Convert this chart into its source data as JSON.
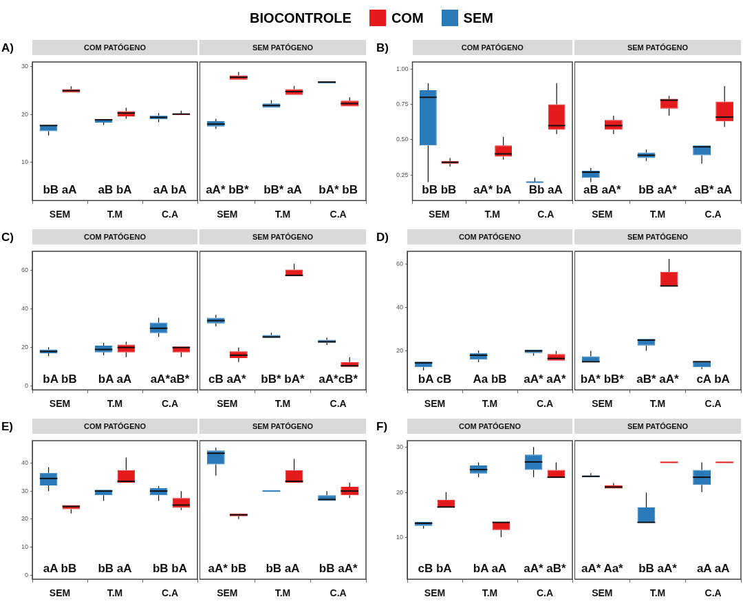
{
  "chart_data": [
    {
      "type": "box",
      "title": "COM PATÓGENO",
      "subtitle": "A)",
      "legend": "top",
      "legend_title": "BIOCONTROLE",
      "categories": [
        "SEM",
        "T.M",
        "C.A"
      ],
      "ylim": [
        2,
        31
      ],
      "yticks": [
        10,
        20,
        30
      ],
      "grid": false,
      "series": [
        {
          "name": "SEM",
          "color": "#2a7ab9",
          "boxes": [
            {
              "low": 15.6,
              "q1": 16.5,
              "median": 17.7,
              "q3": 17.8,
              "high": 17.8
            },
            {
              "low": 17.8,
              "q1": 18.3,
              "median": 18.9,
              "q3": 19.0,
              "high": 19.0
            },
            {
              "low": 18.4,
              "q1": 19.0,
              "median": 19.4,
              "q3": 19.8,
              "high": 20.3
            }
          ]
        },
        {
          "name": "COM",
          "color": "#e41a1c",
          "boxes": [
            {
              "low": 24.6,
              "q1": 24.6,
              "median": 25.0,
              "q3": 25.3,
              "high": 25.9
            },
            {
              "low": 19.1,
              "q1": 19.6,
              "median": 20.3,
              "q3": 20.7,
              "high": 21.4
            },
            {
              "low": 19.9,
              "q1": 19.9,
              "median": 20.1,
              "q3": 20.2,
              "high": 20.8
            }
          ]
        }
      ],
      "annotations": [
        "bB aA",
        "aB bA",
        "aA bA"
      ]
    },
    {
      "type": "box",
      "title": "SEM PATÓGENO",
      "categories": [
        "SEM",
        "T.M",
        "C.A"
      ],
      "ylim": [
        2,
        31
      ],
      "grid": false,
      "tick_labels": "x",
      "series": [
        {
          "color": "#2a7ab9",
          "boxes": [
            {
              "low": 17.0,
              "q1": 17.5,
              "median": 18.0,
              "q3": 18.6,
              "high": 19.1
            },
            {
              "low": 21.4,
              "q1": 21.4,
              "median": 21.9,
              "q3": 22.3,
              "high": 23.0
            },
            {
              "low": 26.5,
              "q1": 26.5,
              "median": 26.8,
              "q3": 26.9,
              "high": 26.9
            }
          ]
        },
        {
          "color": "#e41a1c",
          "boxes": [
            {
              "low": 27.3,
              "q1": 27.3,
              "median": 27.8,
              "q3": 28.2,
              "high": 28.9
            },
            {
              "low": 24.1,
              "q1": 24.1,
              "median": 24.8,
              "q3": 25.3,
              "high": 26.0
            },
            {
              "low": 21.7,
              "q1": 21.7,
              "median": 22.3,
              "q3": 22.9,
              "high": 23.6
            }
          ]
        }
      ],
      "annotations": [
        "aA* bB*",
        "bB* aA",
        "bA* bB"
      ]
    },
    {
      "type": "box",
      "title": "COM PATÓGENO",
      "subtitle": "B)",
      "categories": [
        "SEM",
        "T.M",
        "C.A"
      ],
      "ylim": [
        0.07,
        1.05
      ],
      "yticks": [
        {
          "value": 0.25,
          "label": "0.25"
        },
        {
          "value": 0.5,
          "label": "0.50"
        },
        {
          "value": 0.75,
          "label": "0.75"
        },
        {
          "value": 1,
          "label": "1.00"
        }
      ],
      "grid": false,
      "series": [
        {
          "color": "#2a7ab9",
          "boxes": [
            {
              "low": 0.2,
              "q1": 0.46,
              "median": 0.8,
              "q3": 0.85,
              "high": 0.9
            },
            null,
            {
              "low": 0.2,
              "q1": 0.2,
              "median": 0.2,
              "q3": 0.2,
              "high": 0.23
            }
          ]
        },
        {
          "color": "#e41a1c",
          "boxes": [
            {
              "low": 0.31,
              "q1": 0.33,
              "median": 0.34,
              "q3": 0.35,
              "high": 0.37
            },
            {
              "low": 0.36,
              "q1": 0.38,
              "median": 0.4,
              "q3": 0.46,
              "high": 0.52
            },
            {
              "low": 0.54,
              "q1": 0.57,
              "median": 0.6,
              "q3": 0.75,
              "high": 0.9
            }
          ]
        }
      ],
      "annotations": [
        "bB bB",
        "aA* bA",
        "Bb aA"
      ]
    },
    {
      "type": "box",
      "title": "SEM PATÓGENO",
      "categories": [
        "SEM",
        "T.M",
        "C.A"
      ],
      "ylim": [
        0.07,
        1.05
      ],
      "grid": false,
      "tick_labels": "x",
      "series": [
        {
          "color": "#2a7ab9",
          "boxes": [
            {
              "low": 0.2,
              "q1": 0.23,
              "median": 0.27,
              "q3": 0.28,
              "high": 0.3
            },
            {
              "low": 0.35,
              "q1": 0.37,
              "median": 0.39,
              "q3": 0.41,
              "high": 0.43
            },
            {
              "low": 0.33,
              "q1": 0.39,
              "median": 0.45,
              "q3": 0.46,
              "high": 0.46
            }
          ]
        },
        {
          "color": "#e41a1c",
          "boxes": [
            {
              "low": 0.54,
              "q1": 0.57,
              "median": 0.6,
              "q3": 0.64,
              "high": 0.67
            },
            {
              "low": 0.67,
              "q1": 0.72,
              "median": 0.78,
              "q3": 0.79,
              "high": 0.81
            },
            {
              "low": 0.59,
              "q1": 0.63,
              "median": 0.66,
              "q3": 0.77,
              "high": 0.88
            }
          ]
        }
      ],
      "annotations": [
        "aB aA*",
        "bB aA*",
        "aB* aA"
      ]
    },
    {
      "type": "box",
      "title": "COM PATÓGENO",
      "subtitle": "C)",
      "categories": [
        "SEM",
        "T.M",
        "C.A"
      ],
      "ylim": [
        -2,
        70
      ],
      "yticks": [
        0,
        20,
        40,
        60
      ],
      "grid": false,
      "series": [
        {
          "color": "#2a7ab9",
          "boxes": [
            {
              "low": 15.5,
              "q1": 17,
              "median": 18,
              "q3": 19,
              "high": 20.2
            },
            {
              "low": 16,
              "q1": 17.5,
              "median": 19,
              "q3": 21,
              "high": 22.5
            },
            {
              "low": 25.5,
              "q1": 27.5,
              "median": 30,
              "q3": 33,
              "high": 35.5
            }
          ]
        },
        {
          "color": "#e41a1c",
          "boxes": [
            null,
            {
              "low": 15,
              "q1": 17.5,
              "median": 20,
              "q3": 21.5,
              "high": 23
            },
            {
              "low": 15,
              "q1": 17.5,
              "median": 20,
              "q3": 20.5,
              "high": 20.5
            }
          ]
        }
      ],
      "annotations": [
        "bA bB",
        "bA aA",
        "aA*aB*"
      ]
    },
    {
      "type": "box",
      "title": "SEM PATÓGENO",
      "categories": [
        "SEM",
        "T.M",
        "C.A"
      ],
      "ylim": [
        -2,
        70
      ],
      "grid": false,
      "tick_labels": "x",
      "series": [
        {
          "color": "#2a7ab9",
          "boxes": [
            {
              "low": 31,
              "q1": 32.5,
              "median": 34,
              "q3": 35.5,
              "high": 37
            },
            {
              "low": 25,
              "q1": 25,
              "median": 25.5,
              "q3": 26.5,
              "high": 27.7
            },
            {
              "low": 21.3,
              "q1": 22.5,
              "median": 23,
              "q3": 24,
              "high": 25.2
            }
          ]
        },
        {
          "color": "#e41a1c",
          "boxes": [
            {
              "low": 12.5,
              "q1": 14.5,
              "median": 16,
              "q3": 18,
              "high": 20
            },
            {
              "low": 57,
              "q1": 57,
              "median": 57.5,
              "q3": 60.5,
              "high": 63.5
            },
            {
              "low": 10,
              "q1": 10,
              "median": 10.5,
              "q3": 12.5,
              "high": 15
            }
          ]
        }
      ],
      "annotations": [
        "cB aA*",
        "bB* bA*",
        "aA*cB*"
      ]
    },
    {
      "type": "box",
      "title": "COM PATÓGENO",
      "subtitle": "D)",
      "categories": [
        "SEM",
        "T.M",
        "C.A"
      ],
      "ylim": [
        2,
        66
      ],
      "yticks": [
        20,
        40,
        60
      ],
      "grid": false,
      "series": [
        {
          "color": "#2a7ab9",
          "boxes": [
            {
              "low": 11,
              "q1": 12.5,
              "median": 14.5,
              "q3": 15,
              "high": 15
            },
            {
              "low": 14.8,
              "q1": 16,
              "median": 18,
              "q3": 19,
              "high": 20.2
            },
            {
              "low": 17.8,
              "q1": 19,
              "median": 20,
              "q3": 20.5,
              "high": 20.5
            }
          ]
        },
        {
          "color": "#e41a1c",
          "boxes": [
            null,
            null,
            {
              "low": 15.5,
              "q1": 15.5,
              "median": 16.5,
              "q3": 18.5,
              "high": 20
            }
          ]
        }
      ],
      "annotations": [
        "bA cB",
        "Aa bB",
        "aA* aA*"
      ]
    },
    {
      "type": "box",
      "title": "SEM PATÓGENO",
      "categories": [
        "SEM",
        "T.M",
        "C.A"
      ],
      "ylim": [
        2,
        66
      ],
      "grid": false,
      "tick_labels": "x",
      "series": [
        {
          "color": "#2a7ab9",
          "boxes": [
            {
              "low": 15,
              "q1": 15,
              "median": 15,
              "q3": 17.5,
              "high": 20
            },
            {
              "low": 20,
              "q1": 22.5,
              "median": 25,
              "q3": 25.5,
              "high": 25.5
            },
            {
              "low": 11.5,
              "q1": 12.5,
              "median": 15,
              "q3": 15,
              "high": 15
            }
          ]
        },
        {
          "color": "#e41a1c",
          "boxes": [
            null,
            {
              "low": 50,
              "q1": 50,
              "median": 50,
              "q3": 56.5,
              "high": 62.5
            },
            null
          ]
        }
      ],
      "annotations": [
        "bA* bB*",
        "aB* aA*",
        "cA bA"
      ]
    },
    {
      "type": "box",
      "title": "COM PATÓGENO",
      "subtitle": "E)",
      "categories": [
        "SEM",
        "T.M",
        "C.A"
      ],
      "ylim": [
        -1.5,
        48
      ],
      "yticks": [
        0,
        10,
        20,
        30,
        40
      ],
      "grid": false,
      "series": [
        {
          "color": "#2a7ab9",
          "boxes": [
            {
              "low": 30,
              "q1": 32,
              "median": 34.5,
              "q3": 36.5,
              "high": 38.5
            },
            {
              "low": 26.5,
              "q1": 28.5,
              "median": 30,
              "q3": 30.5,
              "high": 30.5
            },
            {
              "low": 26.5,
              "q1": 28.5,
              "median": 30,
              "q3": 31,
              "high": 31.8
            }
          ]
        },
        {
          "color": "#e41a1c",
          "boxes": [
            {
              "low": 22,
              "q1": 23.5,
              "median": 24.5,
              "q3": 25,
              "high": 25
            },
            {
              "low": 33,
              "q1": 33,
              "median": 33.5,
              "q3": 37.5,
              "high": 42
            },
            {
              "low": 23.2,
              "q1": 24,
              "median": 25,
              "q3": 27.5,
              "high": 30
            }
          ]
        }
      ],
      "annotations": [
        "aA bB",
        "bB aA",
        "bB bA"
      ]
    },
    {
      "type": "box",
      "title": "SEM PATÓGENO",
      "categories": [
        "SEM",
        "T.M",
        "C.A"
      ],
      "ylim": [
        -1.5,
        48
      ],
      "grid": false,
      "tick_labels": "x",
      "series": [
        {
          "color": "#2a7ab9",
          "boxes": [
            {
              "low": 35.5,
              "q1": 39.5,
              "median": 43.5,
              "q3": 44.5,
              "high": 45.5
            },
            {
              "low": 30,
              "q1": 30,
              "median": 30,
              "q3": 30,
              "high": 30
            },
            {
              "low": 26.5,
              "q1": 26.5,
              "median": 27,
              "q3": 28.5,
              "high": 30
            }
          ]
        },
        {
          "color": "#e41a1c",
          "boxes": [
            {
              "low": 20,
              "q1": 21,
              "median": 21.5,
              "q3": 22,
              "high": 22
            },
            {
              "low": 33,
              "q1": 33,
              "median": 33.5,
              "q3": 37.5,
              "high": 41.5
            },
            {
              "low": 27.5,
              "q1": 28.5,
              "median": 30,
              "q3": 31.5,
              "high": 33
            }
          ]
        }
      ],
      "annotations": [
        "aA* bB",
        "bB aA",
        "bB aA*"
      ]
    },
    {
      "type": "box",
      "title": "COM PATÓGENO",
      "subtitle": "F)",
      "categories": [
        "SEM",
        "T.M",
        "C.A"
      ],
      "ylim": [
        0.8,
        31.5
      ],
      "yticks": [
        10,
        20,
        30
      ],
      "grid": false,
      "series": [
        {
          "color": "#2a7ab9",
          "boxes": [
            {
              "low": 12.0,
              "q1": 12.6,
              "median": 13.2,
              "q3": 13.5,
              "high": 13.5
            },
            {
              "low": 23.4,
              "q1": 24.2,
              "median": 25.1,
              "q3": 26.0,
              "high": 26.7
            },
            {
              "low": 23.4,
              "q1": 25.0,
              "median": 26.8,
              "q3": 28.4,
              "high": 30.1
            }
          ]
        },
        {
          "color": "#e41a1c",
          "boxes": [
            {
              "low": 16.7,
              "q1": 16.7,
              "median": 16.8,
              "q3": 18.4,
              "high": 20.1
            },
            {
              "low": 10.1,
              "q1": 11.7,
              "median": 13.4,
              "q3": 13.5,
              "high": 13.5
            },
            {
              "low": 23.4,
              "q1": 23.4,
              "median": 23.4,
              "q3": 25.0,
              "high": 26.7
            }
          ]
        }
      ],
      "annotations": [
        "cB bA",
        "bA aA",
        "aA* aB*"
      ]
    },
    {
      "type": "box",
      "title": "SEM PATÓGENO",
      "categories": [
        "SEM",
        "T.M",
        "C.A"
      ],
      "ylim": [
        0.8,
        31.5
      ],
      "grid": false,
      "tick_labels": "x",
      "series": [
        {
          "color": "#2a7ab9",
          "boxes": [
            {
              "low": 23.4,
              "q1": 23.4,
              "median": 23.6,
              "q3": 23.8,
              "high": 24.3
            },
            {
              "low": 13.3,
              "q1": 13.3,
              "median": 13.4,
              "q3": 16.7,
              "high": 20.0
            },
            {
              "low": 20.1,
              "q1": 21.7,
              "median": 23.4,
              "q3": 25.0,
              "high": 26.7
            }
          ]
        },
        {
          "color": "#e41a1c",
          "boxes": [
            {
              "low": 20.9,
              "q1": 20.9,
              "median": 21.2,
              "q3": 21.6,
              "high": 22.1
            },
            {
              "low": 26.7,
              "q1": 26.7,
              "median": 26.7,
              "q3": 26.7,
              "high": 26.7
            },
            {
              "low": 26.7,
              "q1": 26.7,
              "median": 26.7,
              "q3": 26.7,
              "high": 26.7
            }
          ]
        }
      ],
      "annotations": [
        "aA* Aa*",
        "bB aA*",
        "aA aA"
      ]
    }
  ]
}
